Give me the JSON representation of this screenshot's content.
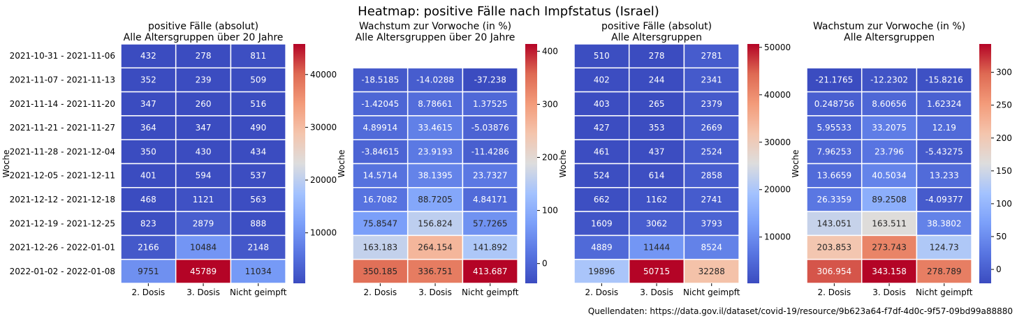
{
  "title": "Heatmap: positive Fälle nach Impfstatus (Israel)",
  "source": "Quellendaten: https://data.gov.il/dataset/covid-19/resource/9b623a64-f7df-4d0c-9f57-09bd99a88880",
  "ylabel": "Woche",
  "columns": [
    "2. Dosis",
    "3. Dosis",
    "Nicht geimpft"
  ],
  "rows": [
    "2021-10-31 - 2021-11-06",
    "2021-11-07 - 2021-11-13",
    "2021-11-14 - 2021-11-20",
    "2021-11-21 - 2021-11-27",
    "2021-11-28 - 2021-12-04",
    "2021-12-05 - 2021-12-11",
    "2021-12-12 - 2021-12-18",
    "2021-12-19 - 2021-12-25",
    "2021-12-26 - 2022-01-01",
    "2022-01-02 - 2022-01-08"
  ],
  "colors": {
    "low": "#3b4cc0",
    "mid": "#dddddd",
    "high": "#b40426"
  },
  "chart_data": [
    {
      "type": "heatmap",
      "title_lines": [
        "positive Fälle (absolut)",
        "Alle Altersgruppen über 20 Jahre"
      ],
      "show_row_labels": true,
      "colorbar_range": [
        432,
        45789
      ],
      "colorbar_ticks": [
        "10000",
        "20000",
        "30000",
        "40000"
      ],
      "values": [
        [
          432,
          278,
          811
        ],
        [
          352,
          239,
          509
        ],
        [
          347,
          260,
          516
        ],
        [
          364,
          347,
          490
        ],
        [
          350,
          430,
          434
        ],
        [
          401,
          594,
          537
        ],
        [
          468,
          1121,
          563
        ],
        [
          823,
          2879,
          888
        ],
        [
          2166,
          10484,
          2148
        ],
        [
          9751,
          45789,
          11034
        ]
      ],
      "labels": [
        [
          "432",
          "278",
          "811"
        ],
        [
          "352",
          "239",
          "509"
        ],
        [
          "347",
          "260",
          "516"
        ],
        [
          "364",
          "347",
          "490"
        ],
        [
          "350",
          "430",
          "434"
        ],
        [
          "401",
          "594",
          "537"
        ],
        [
          "468",
          "1121",
          "563"
        ],
        [
          "823",
          "2879",
          "888"
        ],
        [
          "2166",
          "10484",
          "2148"
        ],
        [
          "9751",
          "45789",
          "11034"
        ]
      ]
    },
    {
      "type": "heatmap",
      "title_lines": [
        "Wachstum zur Vorwoche (in %)",
        "Alle Altersgruppen über 20 Jahre"
      ],
      "show_row_labels": false,
      "colorbar_range": [
        -37.238,
        413.687
      ],
      "colorbar_ticks": [
        "0",
        "100",
        "200",
        "300",
        "400"
      ],
      "values": [
        null,
        [
          -18.5185,
          -14.0288,
          -37.238
        ],
        [
          -1.42045,
          8.78661,
          1.37525
        ],
        [
          4.89914,
          33.4615,
          -5.03876
        ],
        [
          -3.84615,
          23.9193,
          -11.4286
        ],
        [
          14.5714,
          38.1395,
          23.7327
        ],
        [
          16.7082,
          88.7205,
          4.84171
        ],
        [
          75.8547,
          156.824,
          57.7265
        ],
        [
          163.183,
          264.154,
          141.892
        ],
        [
          350.185,
          336.751,
          413.687
        ]
      ],
      "labels": [
        null,
        [
          "-18.5185",
          "-14.0288",
          "-37.238"
        ],
        [
          "-1.42045",
          "8.78661",
          "1.37525"
        ],
        [
          "4.89914",
          "33.4615",
          "-5.03876"
        ],
        [
          "-3.84615",
          "23.9193",
          "-11.4286"
        ],
        [
          "14.5714",
          "38.1395",
          "23.7327"
        ],
        [
          "16.7082",
          "88.7205",
          "4.84171"
        ],
        [
          "75.8547",
          "156.824",
          "57.7265"
        ],
        [
          "163.183",
          "264.154",
          "141.892"
        ],
        [
          "350.185",
          "336.751",
          "413.687"
        ]
      ]
    },
    {
      "type": "heatmap",
      "title_lines": [
        "positive Fälle (absolut)",
        "Alle Altersgruppen"
      ],
      "show_row_labels": false,
      "colorbar_range": [
        244,
        50715
      ],
      "colorbar_ticks": [
        "10000",
        "20000",
        "30000",
        "40000",
        "50000"
      ],
      "values": [
        [
          510,
          278,
          2781
        ],
        [
          402,
          244,
          2341
        ],
        [
          403,
          265,
          2379
        ],
        [
          427,
          353,
          2669
        ],
        [
          461,
          437,
          2524
        ],
        [
          524,
          614,
          2858
        ],
        [
          662,
          1162,
          2741
        ],
        [
          1609,
          3062,
          3793
        ],
        [
          4889,
          11444,
          8524
        ],
        [
          19896,
          50715,
          32288
        ]
      ],
      "labels": [
        [
          "510",
          "278",
          "2781"
        ],
        [
          "402",
          "244",
          "2341"
        ],
        [
          "403",
          "265",
          "2379"
        ],
        [
          "427",
          "353",
          "2669"
        ],
        [
          "461",
          "437",
          "2524"
        ],
        [
          "524",
          "614",
          "2858"
        ],
        [
          "662",
          "1162",
          "2741"
        ],
        [
          "1609",
          "3062",
          "3793"
        ],
        [
          "4889",
          "11444",
          "8524"
        ],
        [
          "19896",
          "50715",
          "32288"
        ]
      ]
    },
    {
      "type": "heatmap",
      "title_lines": [
        "Wachstum zur Vorwoche (in %)",
        "Alle Altersgruppen"
      ],
      "show_row_labels": false,
      "colorbar_range": [
        -21.1765,
        343.158
      ],
      "colorbar_ticks": [
        "0",
        "50",
        "100",
        "150",
        "200",
        "250",
        "300"
      ],
      "values": [
        null,
        [
          -21.1765,
          -12.2302,
          -15.8216
        ],
        [
          0.248756,
          8.60656,
          1.62324
        ],
        [
          5.95533,
          33.2075,
          12.19
        ],
        [
          7.96253,
          23.796,
          -5.43275
        ],
        [
          13.6659,
          40.5034,
          13.233
        ],
        [
          26.3359,
          89.2508,
          -4.09377
        ],
        [
          143.051,
          163.511,
          38.3802
        ],
        [
          203.853,
          273.743,
          124.73
        ],
        [
          306.954,
          343.158,
          278.789
        ]
      ],
      "labels": [
        null,
        [
          "-21.1765",
          "-12.2302",
          "-15.8216"
        ],
        [
          "0.248756",
          "8.60656",
          "1.62324"
        ],
        [
          "5.95533",
          "33.2075",
          "12.19"
        ],
        [
          "7.96253",
          "23.796",
          "-5.43275"
        ],
        [
          "13.6659",
          "40.5034",
          "13.233"
        ],
        [
          "26.3359",
          "89.2508",
          "-4.09377"
        ],
        [
          "143.051",
          "163.511",
          "38.3802"
        ],
        [
          "203.853",
          "273.743",
          "124.73"
        ],
        [
          "306.954",
          "343.158",
          "278.789"
        ]
      ]
    }
  ]
}
